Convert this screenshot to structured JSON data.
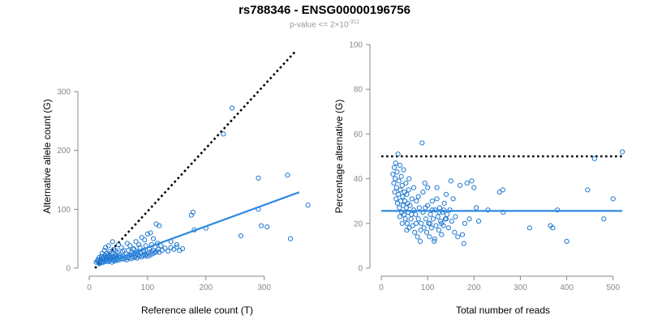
{
  "figure": {
    "title": "rs788346 - ENSG00000196756",
    "subtitle_prefix": "p-value <= 2×10",
    "subtitle_exponent": "-311"
  },
  "colors": {
    "points": "#1f78d1",
    "fit": "#2f8ae0",
    "reference": "#000000",
    "axis": "#888888"
  },
  "chart_data": [
    {
      "type": "scatter",
      "title": "",
      "xlabel": "Reference allele count (T)",
      "ylabel": "Alternative allele count (G)",
      "xlim": [
        0,
        370
      ],
      "ylim": [
        0,
        380
      ],
      "xticks": [
        0,
        100,
        200,
        300
      ],
      "yticks": [
        0,
        100,
        200,
        300
      ],
      "grid": false,
      "reference_line": {
        "style": "dotted",
        "x": [
          10,
          355
        ],
        "y": [
          0,
          370
        ]
      },
      "fit_line": {
        "x": [
          15,
          360
        ],
        "y": [
          4,
          129
        ]
      },
      "points": [
        [
          12,
          10
        ],
        [
          14,
          12
        ],
        [
          15,
          14
        ],
        [
          16,
          9
        ],
        [
          17,
          18
        ],
        [
          18,
          11
        ],
        [
          19,
          15
        ],
        [
          20,
          13
        ],
        [
          21,
          20
        ],
        [
          22,
          12
        ],
        [
          23,
          16
        ],
        [
          24,
          10
        ],
        [
          25,
          18
        ],
        [
          26,
          14
        ],
        [
          27,
          22
        ],
        [
          28,
          12
        ],
        [
          29,
          17
        ],
        [
          30,
          25
        ],
        [
          31,
          14
        ],
        [
          32,
          19
        ],
        [
          33,
          11
        ],
        [
          34,
          16
        ],
        [
          35,
          21
        ],
        [
          36,
          13
        ],
        [
          37,
          18
        ],
        [
          38,
          15
        ],
        [
          39,
          10
        ],
        [
          40,
          20
        ],
        [
          41,
          14
        ],
        [
          42,
          17
        ],
        [
          43,
          12
        ],
        [
          44,
          19
        ],
        [
          45,
          16
        ],
        [
          46,
          22
        ],
        [
          47,
          13
        ],
        [
          48,
          18
        ],
        [
          49,
          15
        ],
        [
          50,
          20
        ],
        [
          52,
          14
        ],
        [
          54,
          19
        ],
        [
          56,
          16
        ],
        [
          58,
          21
        ],
        [
          60,
          15
        ],
        [
          62,
          18
        ],
        [
          64,
          14
        ],
        [
          66,
          20
        ],
        [
          68,
          17
        ],
        [
          70,
          22
        ],
        [
          72,
          16
        ],
        [
          74,
          19
        ],
        [
          76,
          24
        ],
        [
          78,
          18
        ],
        [
          80,
          21
        ],
        [
          82,
          17
        ],
        [
          84,
          23
        ],
        [
          86,
          20
        ],
        [
          88,
          25
        ],
        [
          90,
          19
        ],
        [
          92,
          22
        ],
        [
          94,
          27
        ],
        [
          96,
          21
        ],
        [
          98,
          24
        ],
        [
          100,
          20
        ],
        [
          102,
          26
        ],
        [
          104,
          22
        ],
        [
          106,
          28
        ],
        [
          108,
          24
        ],
        [
          110,
          30
        ],
        [
          112,
          26
        ],
        [
          115,
          28
        ],
        [
          118,
          32
        ],
        [
          120,
          27
        ],
        [
          125,
          30
        ],
        [
          130,
          34
        ],
        [
          135,
          29
        ],
        [
          140,
          35
        ],
        [
          145,
          32
        ],
        [
          150,
          36
        ],
        [
          155,
          30
        ],
        [
          160,
          33
        ],
        [
          22,
          25
        ],
        [
          26,
          30
        ],
        [
          30,
          20
        ],
        [
          35,
          28
        ],
        [
          40,
          45
        ],
        [
          45,
          30
        ],
        [
          50,
          40
        ],
        [
          55,
          35
        ],
        [
          60,
          30
        ],
        [
          65,
          42
        ],
        [
          70,
          38
        ],
        [
          75,
          33
        ],
        [
          80,
          45
        ],
        [
          85,
          40
        ],
        [
          90,
          52
        ],
        [
          95,
          48
        ],
        [
          100,
          58
        ],
        [
          105,
          60
        ],
        [
          110,
          50
        ],
        [
          115,
          75
        ],
        [
          120,
          72
        ],
        [
          140,
          45
        ],
        [
          150,
          40
        ],
        [
          175,
          90
        ],
        [
          178,
          95
        ],
        [
          180,
          65
        ],
        [
          200,
          68
        ],
        [
          230,
          228
        ],
        [
          245,
          272
        ],
        [
          260,
          55
        ],
        [
          290,
          100
        ],
        [
          290,
          153
        ],
        [
          295,
          72
        ],
        [
          305,
          70
        ],
        [
          340,
          158
        ],
        [
          345,
          50
        ],
        [
          375,
          107
        ],
        [
          28,
          35
        ],
        [
          33,
          38
        ],
        [
          38,
          25
        ],
        [
          42,
          32
        ],
        [
          48,
          27
        ],
        [
          53,
          22
        ],
        [
          57,
          28
        ],
        [
          63,
          24
        ],
        [
          67,
          30
        ],
        [
          73,
          26
        ],
        [
          77,
          32
        ],
        [
          83,
          28
        ],
        [
          87,
          35
        ],
        [
          93,
          30
        ],
        [
          97,
          38
        ],
        [
          103,
          33
        ],
        [
          107,
          40
        ],
        [
          113,
          36
        ],
        [
          117,
          42
        ],
        [
          123,
          38
        ]
      ]
    },
    {
      "type": "scatter",
      "title": "",
      "xlabel": "Total number of reads",
      "ylabel": "Percentage alternative (G)",
      "xlim": [
        0,
        525
      ],
      "ylim": [
        0,
        100
      ],
      "xticks": [
        0,
        100,
        200,
        300,
        400,
        500
      ],
      "yticks": [
        0,
        20,
        40,
        60,
        80,
        100
      ],
      "grid": false,
      "reference_line": {
        "style": "dotted",
        "y": 50,
        "x": [
          0,
          520
        ]
      },
      "fit_line": {
        "y": 25.6,
        "x": [
          0,
          520
        ]
      },
      "points": [
        [
          25,
          42
        ],
        [
          27,
          38
        ],
        [
          28,
          45
        ],
        [
          29,
          34
        ],
        [
          30,
          40
        ],
        [
          31,
          47
        ],
        [
          32,
          31
        ],
        [
          33,
          36
        ],
        [
          34,
          43
        ],
        [
          35,
          29
        ],
        [
          36,
          51
        ],
        [
          37,
          33
        ],
        [
          38,
          39
        ],
        [
          39,
          27
        ],
        [
          40,
          46
        ],
        [
          41,
          35
        ],
        [
          42,
          30
        ],
        [
          43,
          41
        ],
        [
          44,
          25
        ],
        [
          45,
          37
        ],
        [
          46,
          32
        ],
        [
          47,
          28
        ],
        [
          48,
          44
        ],
        [
          49,
          24
        ],
        [
          50,
          34
        ],
        [
          51,
          30
        ],
        [
          52,
          22
        ],
        [
          53,
          38
        ],
        [
          54,
          27
        ],
        [
          55,
          33
        ],
        [
          56,
          20
        ],
        [
          57,
          29
        ],
        [
          58,
          25
        ],
        [
          59,
          35
        ],
        [
          60,
          18
        ],
        [
          62,
          28
        ],
        [
          64,
          22
        ],
        [
          66,
          31
        ],
        [
          68,
          19
        ],
        [
          70,
          26
        ],
        [
          72,
          16
        ],
        [
          74,
          24
        ],
        [
          76,
          30
        ],
        [
          78,
          14
        ],
        [
          80,
          22
        ],
        [
          82,
          27
        ],
        [
          84,
          12
        ],
        [
          86,
          20
        ],
        [
          88,
          56
        ],
        [
          90,
          25
        ],
        [
          92,
          18
        ],
        [
          94,
          38
        ],
        [
          96,
          22
        ],
        [
          98,
          16
        ],
        [
          100,
          28
        ],
        [
          102,
          20
        ],
        [
          104,
          14
        ],
        [
          106,
          24
        ],
        [
          108,
          18
        ],
        [
          110,
          30
        ],
        [
          112,
          22
        ],
        [
          114,
          12
        ],
        [
          116,
          26
        ],
        [
          118,
          19
        ],
        [
          120,
          36
        ],
        [
          122,
          23
        ],
        [
          124,
          17
        ],
        [
          126,
          27
        ],
        [
          128,
          21
        ],
        [
          130,
          15
        ],
        [
          132,
          25
        ],
        [
          134,
          19
        ],
        [
          136,
          29
        ],
        [
          138,
          22
        ],
        [
          140,
          33
        ],
        [
          142,
          24
        ],
        [
          145,
          18
        ],
        [
          148,
          26
        ],
        [
          150,
          39
        ],
        [
          152,
          21
        ],
        [
          155,
          31
        ],
        [
          158,
          16
        ],
        [
          160,
          23
        ],
        [
          165,
          14
        ],
        [
          170,
          37
        ],
        [
          175,
          15
        ],
        [
          178,
          11
        ],
        [
          180,
          20
        ],
        [
          185,
          38
        ],
        [
          190,
          22
        ],
        [
          195,
          39
        ],
        [
          200,
          36
        ],
        [
          205,
          27
        ],
        [
          210,
          21
        ],
        [
          230,
          26
        ],
        [
          255,
          34
        ],
        [
          262,
          35
        ],
        [
          263,
          25
        ],
        [
          320,
          18
        ],
        [
          365,
          19
        ],
        [
          370,
          18
        ],
        [
          380,
          26
        ],
        [
          400,
          12
        ],
        [
          445,
          35
        ],
        [
          460,
          49
        ],
        [
          480,
          22
        ],
        [
          500,
          31
        ],
        [
          520,
          52
        ],
        [
          40,
          23
        ],
        [
          45,
          20
        ],
        [
          55,
          17
        ],
        [
          60,
          40
        ],
        [
          65,
          24
        ],
        [
          70,
          36
        ],
        [
          75,
          20
        ],
        [
          80,
          32
        ],
        [
          85,
          17
        ],
        [
          90,
          34
        ],
        [
          95,
          27
        ],
        [
          100,
          36
        ],
        [
          105,
          20
        ],
        [
          110,
          26
        ],
        [
          115,
          13
        ],
        [
          120,
          31
        ],
        [
          125,
          25
        ],
        [
          130,
          20
        ],
        [
          135,
          26
        ],
        [
          140,
          22
        ]
      ]
    }
  ]
}
